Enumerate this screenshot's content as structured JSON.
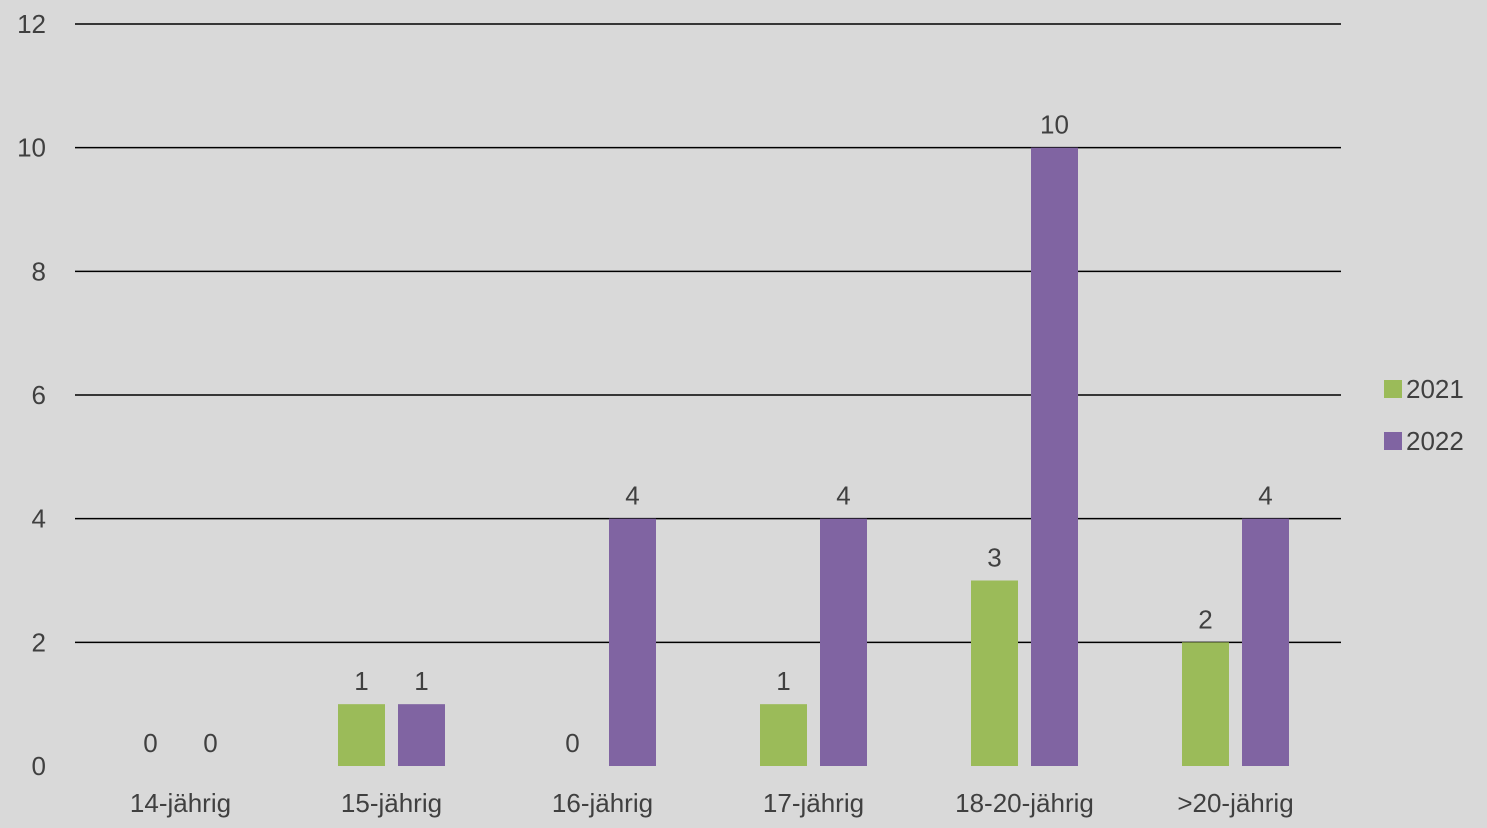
{
  "chart_data": {
    "type": "bar",
    "categories": [
      "14-jährig",
      "15-jährig",
      "16-jährig",
      "17-jährig",
      "18-20-jährig",
      ">20-jährig"
    ],
    "series": [
      {
        "name": "2021",
        "values": [
          0,
          1,
          0,
          1,
          3,
          2
        ],
        "color": "#9bbb59"
      },
      {
        "name": "2022",
        "values": [
          0,
          1,
          4,
          4,
          10,
          4
        ],
        "color": "#8064a2"
      }
    ],
    "data_labels": [
      [
        "0",
        "1",
        "0",
        "1",
        "3",
        "2"
      ],
      [
        "0",
        "1",
        "4",
        "4",
        "10",
        "4"
      ]
    ],
    "ylim": [
      0,
      12
    ],
    "yticks": [
      "0",
      "2",
      "4",
      "6",
      "8",
      "10",
      "12"
    ],
    "title": "",
    "xlabel": "",
    "ylabel": "",
    "grid": true,
    "legend_position": "right",
    "background_color": "#d9d9d9",
    "gridline_color": "#000000"
  }
}
